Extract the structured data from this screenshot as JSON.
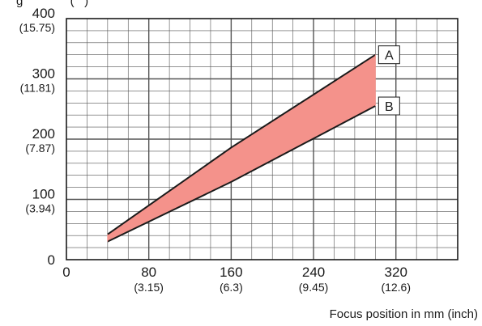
{
  "chart_data": {
    "type": "area",
    "x_unit_label": "Focus position in mm (inch)",
    "y_unit_label_fragment": "g              (   )",
    "xlim": [
      0,
      380
    ],
    "ylim": [
      0,
      400
    ],
    "grid": true,
    "x_ticks": [
      {
        "value": 0,
        "label": "0",
        "sublabel": ""
      },
      {
        "value": 80,
        "label": "80",
        "sublabel": "(3.15)"
      },
      {
        "value": 160,
        "label": "160",
        "sublabel": "(6.3)"
      },
      {
        "value": 240,
        "label": "240",
        "sublabel": "(9.45)"
      },
      {
        "value": 320,
        "label": "320",
        "sublabel": "(12.6)"
      }
    ],
    "y_ticks": [
      {
        "value": 0,
        "label": "0",
        "sublabel": ""
      },
      {
        "value": 100,
        "label": "100",
        "sublabel": "(3.94)"
      },
      {
        "value": 200,
        "label": "200",
        "sublabel": "(7.87)"
      },
      {
        "value": 300,
        "label": "300",
        "sublabel": "(11.81)"
      },
      {
        "value": 400,
        "label": "400",
        "sublabel": "(15.75)"
      }
    ],
    "series": [
      {
        "name": "A",
        "x": [
          40,
          160,
          300
        ],
        "y": [
          42,
          186,
          340
        ]
      },
      {
        "name": "B",
        "x": [
          40,
          160,
          300
        ],
        "y": [
          30,
          129,
          255
        ]
      }
    ],
    "fill_color": "#f4928b",
    "line_color": "#1a1a1a",
    "grid_color": "#555555"
  }
}
